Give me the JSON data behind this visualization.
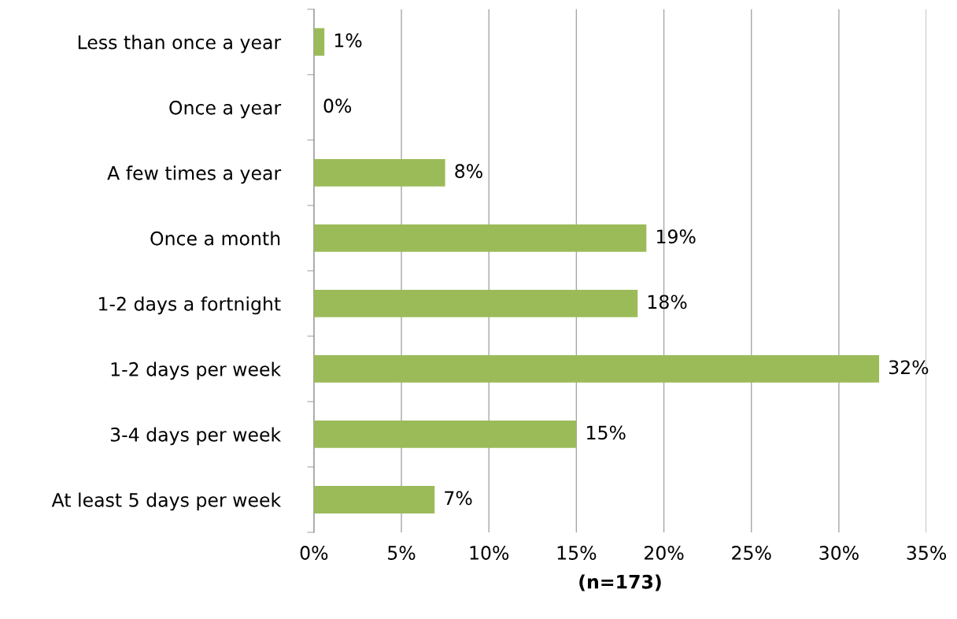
{
  "chart_data": {
    "type": "bar",
    "orientation": "horizontal",
    "xlabel": "(n=173)",
    "categories": [
      "Less than once a year",
      "Once a year",
      "A few times a year",
      "Once a month",
      "1-2 days a fortnight",
      "1-2 days per week",
      "3-4 days per week",
      "At least 5 days per week"
    ],
    "values": [
      0.6,
      0,
      7.5,
      19.0,
      18.5,
      32.3,
      15.0,
      6.9
    ],
    "value_labels": [
      "1%",
      "0%",
      "8%",
      "19%",
      "18%",
      "32%",
      "15%",
      "7%"
    ],
    "color": "#9bbb59",
    "xlim": [
      0,
      35
    ],
    "xticks": [
      {
        "value": 0,
        "label": "0%"
      },
      {
        "value": 5,
        "label": "5%"
      },
      {
        "value": 10,
        "label": "10%"
      },
      {
        "value": 15,
        "label": "15%"
      },
      {
        "value": 20,
        "label": "20%"
      },
      {
        "value": 25,
        "label": "25%"
      },
      {
        "value": 30,
        "label": "30%"
      },
      {
        "value": 35,
        "label": "35%"
      }
    ],
    "grid": "x",
    "legend": false
  }
}
